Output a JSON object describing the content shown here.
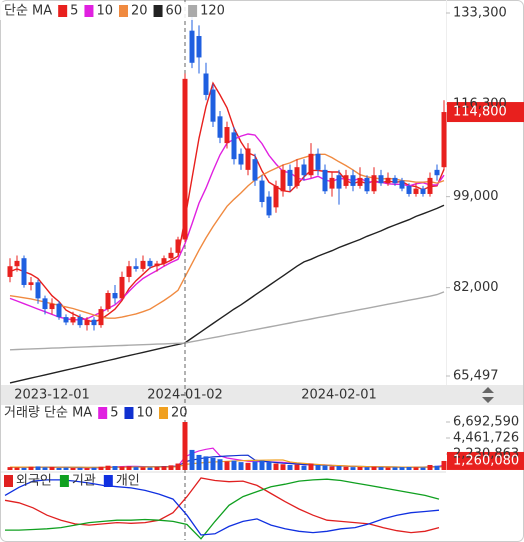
{
  "chart_data": [
    {
      "type": "candlestick",
      "legend_title": "단순 MA",
      "categories": [
        null,
        null,
        null,
        null,
        null,
        null,
        "2023-12-01",
        null,
        null,
        null,
        null,
        null,
        null,
        null,
        null,
        null,
        null,
        null,
        null,
        null,
        null,
        null,
        null,
        null,
        null,
        "2024-01-02",
        null,
        null,
        null,
        null,
        null,
        null,
        null,
        null,
        null,
        null,
        null,
        null,
        null,
        null,
        null,
        null,
        null,
        null,
        null,
        null,
        null,
        "2024-02-01",
        null,
        null,
        null,
        null,
        null,
        null,
        null,
        null,
        null,
        null,
        null,
        null,
        null,
        null,
        null
      ],
      "open": [
        84000,
        86000,
        87500,
        82500,
        83000,
        80000,
        78000,
        79000,
        76500,
        75500,
        76500,
        75000,
        76000,
        75000,
        78000,
        81000,
        80000,
        84000,
        86000,
        85500,
        87000,
        86000,
        86500,
        87500,
        88500,
        91000,
        130000,
        129000,
        122000,
        119000,
        114000,
        109000,
        111000,
        107000,
        104000,
        106000,
        102000,
        99000,
        97000,
        100000,
        104000,
        101000,
        105000,
        103000,
        107000,
        104000,
        100500,
        103000,
        101000,
        103000,
        101000,
        102500,
        100000,
        103000,
        101500,
        102500,
        102000,
        101000,
        99500,
        100500,
        99500,
        104000,
        104500
      ],
      "high": [
        87500,
        88000,
        88000,
        84000,
        83500,
        80500,
        80000,
        79500,
        77000,
        77500,
        77000,
        76500,
        76500,
        78500,
        81500,
        82500,
        85000,
        87000,
        87500,
        88000,
        87500,
        87000,
        88000,
        89500,
        91500,
        122000,
        133300,
        131000,
        124000,
        120000,
        115000,
        113000,
        112000,
        108000,
        109000,
        107000,
        103000,
        100000,
        102000,
        105000,
        105000,
        106000,
        106000,
        109000,
        108000,
        105000,
        103500,
        104000,
        104000,
        104000,
        104500,
        103000,
        104500,
        104000,
        103500,
        103000,
        102500,
        101500,
        101500,
        101000,
        103500,
        105000,
        117000
      ],
      "low": [
        83000,
        85000,
        82000,
        81500,
        79000,
        77000,
        77000,
        76000,
        75000,
        75000,
        74500,
        74000,
        74000,
        74500,
        77500,
        79000,
        79500,
        83000,
        85000,
        85000,
        85500,
        85000,
        86000,
        87000,
        88000,
        90500,
        123000,
        122000,
        117000,
        112000,
        109000,
        108000,
        105000,
        104000,
        103000,
        101000,
        97000,
        95000,
        96000,
        99000,
        100000,
        100500,
        102000,
        102500,
        103000,
        99500,
        99000,
        97500,
        100500,
        100000,
        100500,
        99500,
        99500,
        101000,
        101000,
        101000,
        100000,
        99000,
        99000,
        99000,
        99000,
        102000,
        104000
      ],
      "close": [
        86000,
        87000,
        82500,
        83000,
        80000,
        78000,
        79000,
        76500,
        75500,
        76500,
        75000,
        76000,
        75000,
        78000,
        81000,
        80000,
        84000,
        86000,
        85500,
        87000,
        86000,
        86500,
        87500,
        88500,
        91000,
        121000,
        124000,
        125000,
        118000,
        113000,
        110000,
        112000,
        106000,
        105000,
        108000,
        102000,
        98000,
        95500,
        101000,
        104000,
        101000,
        104500,
        103000,
        107000,
        104000,
        100000,
        102500,
        100500,
        103000,
        101000,
        102500,
        100000,
        103000,
        101500,
        102500,
        101500,
        100500,
        99500,
        100500,
        99500,
        102500,
        103000,
        114800
      ],
      "up_color": "#e8201e",
      "down_color": "#1f5fe0",
      "ylim": [
        65497,
        133300
      ],
      "yticks": [
        {
          "value": 133300,
          "label": "133,300"
        },
        {
          "value": 116300,
          "label": "116,300"
        },
        {
          "value": 99000,
          "label": "99,000"
        },
        {
          "value": 82000,
          "label": "82,000"
        },
        {
          "value": 65497,
          "label": "65,497"
        }
      ],
      "current_label": {
        "value": 114800,
        "label": "114,800"
      },
      "series": [
        {
          "name": "5",
          "color": "#e8201e",
          "values": [
            85000,
            85500,
            85000,
            84500,
            83700,
            82100,
            80500,
            79400,
            77800,
            77100,
            76500,
            75900,
            75600,
            76100,
            77000,
            78000,
            79600,
            81800,
            83300,
            84500,
            85700,
            86200,
            86500,
            87100,
            87900,
            94900,
            102400,
            109900,
            115800,
            120200,
            118000,
            115600,
            111800,
            109200,
            107200,
            106600,
            103800,
            101700,
            100900,
            100100,
            99900,
            101200,
            102700,
            103900,
            103900,
            103700,
            103600,
            103600,
            102000,
            101400,
            101900,
            101400,
            102000,
            101600,
            101900,
            101700,
            101800,
            101100,
            100900,
            100300,
            100900,
            101000,
            104100
          ]
        },
        {
          "name": "10",
          "color": "#e020e0",
          "values": [
            80000,
            79500,
            79000,
            78500,
            78000,
            77500,
            77000,
            76500,
            76200,
            76000,
            76000,
            76200,
            76800,
            77400,
            78100,
            78800,
            79900,
            81300,
            82600,
            83700,
            84500,
            85200,
            86000,
            86700,
            87300,
            90200,
            93900,
            97800,
            100600,
            103800,
            106800,
            109000,
            109700,
            110300,
            110700,
            110500,
            108900,
            106700,
            105100,
            103700,
            103500,
            102500,
            102100,
            102400,
            102800,
            102100,
            101800,
            102400,
            102300,
            102000,
            102400,
            101800,
            101700,
            101700,
            101400,
            101300,
            101300,
            101000,
            101400,
            101600,
            101200,
            101200,
            103000
          ]
        },
        {
          "name": "20",
          "color": "#f08a40",
          "values": [
            80500,
            80300,
            80100,
            79900,
            79600,
            79300,
            79000,
            78700,
            78400,
            78100,
            77700,
            77300,
            76900,
            76500,
            76300,
            76300,
            76500,
            76800,
            77100,
            77500,
            78000,
            78800,
            79600,
            80500,
            81500,
            84000,
            86500,
            89000,
            91300,
            93400,
            95300,
            97200,
            98500,
            99700,
            101000,
            102100,
            103000,
            103700,
            104300,
            104900,
            105300,
            105900,
            106300,
            106700,
            106900,
            106900,
            106300,
            105500,
            104800,
            104000,
            103100,
            102700,
            102500,
            102300,
            102400,
            102300,
            102000,
            101900,
            101700,
            101700,
            101800,
            101500,
            102000
          ]
        },
        {
          "name": "60",
          "color": "#222222",
          "values": [
            64200,
            64500,
            64800,
            65100,
            65400,
            65700,
            66000,
            66300,
            66600,
            66900,
            67200,
            67500,
            67800,
            68100,
            68400,
            68700,
            69000,
            69300,
            69600,
            69900,
            70200,
            70500,
            70800,
            71100,
            71400,
            71700,
            72600,
            73500,
            74400,
            75300,
            76200,
            77100,
            78000,
            78800,
            79700,
            80600,
            81500,
            82400,
            83300,
            84200,
            85100,
            86000,
            86800,
            87300,
            87900,
            88400,
            88900,
            89500,
            90000,
            90500,
            91000,
            91600,
            92100,
            92600,
            93200,
            93700,
            94200,
            94700,
            95300,
            95800,
            96300,
            96800,
            97400
          ]
        },
        {
          "name": "120",
          "color": "#aaaaaa",
          "values": [
            70400,
            70450,
            70500,
            70550,
            70600,
            70650,
            70700,
            70750,
            70800,
            70850,
            70900,
            70950,
            71000,
            71050,
            71100,
            71150,
            71200,
            71250,
            71300,
            71350,
            71400,
            71450,
            71500,
            71550,
            71600,
            71650,
            71900,
            72150,
            72400,
            72650,
            72900,
            73150,
            73400,
            73650,
            73900,
            74150,
            74400,
            74650,
            74900,
            75150,
            75400,
            75650,
            75900,
            76150,
            76400,
            76650,
            76900,
            77150,
            77400,
            77650,
            77900,
            78150,
            78400,
            78650,
            78900,
            79150,
            79400,
            79650,
            79900,
            80150,
            80400,
            80700,
            81200
          ]
        }
      ]
    },
    {
      "type": "bar",
      "legend_title": "거래량 단순 MA",
      "values": [
        400000,
        350000,
        300000,
        450000,
        500000,
        380000,
        420000,
        300000,
        350000,
        280000,
        310000,
        260000,
        330000,
        450000,
        600000,
        550000,
        480000,
        520000,
        400000,
        380000,
        350000,
        420000,
        500000,
        650000,
        900000,
        6692590,
        2800000,
        2100000,
        1900000,
        1700000,
        1500000,
        1200000,
        1300000,
        1100000,
        1000000,
        1200000,
        1300000,
        1100000,
        900000,
        800000,
        700000,
        750000,
        600000,
        900000,
        700000,
        650000,
        500000,
        550000,
        450000,
        400000,
        420000,
        380000,
        450000,
        400000,
        350000,
        380000,
        400000,
        420000,
        380000,
        360000,
        700000,
        600000,
        1260080
      ],
      "ylim": [
        0,
        6692590
      ],
      "yticks": [
        {
          "value": 6692590,
          "label": "6,692,590"
        },
        {
          "value": 4461726,
          "label": "4,461,726"
        },
        {
          "value": 2230863,
          "label": "2,230,863"
        }
      ],
      "current_label": {
        "value": 1260080,
        "label": "1,260,080"
      },
      "series": [
        {
          "name": "5",
          "color": "#e020e0",
          "values": [
            400000,
            390000,
            380000,
            400000,
            410000,
            400000,
            390000,
            370000,
            390000,
            340000,
            320000,
            310000,
            300000,
            320000,
            390000,
            440000,
            480000,
            520000,
            510000,
            470000,
            450000,
            430000,
            410000,
            460000,
            560000,
            1810000,
            2310000,
            2670000,
            2880000,
            3040000,
            1980000,
            1680000,
            1520000,
            1360000,
            1220000,
            1160000,
            1180000,
            1140000,
            1100000,
            1060000,
            960000,
            850000,
            750000,
            730000,
            730000,
            720000,
            640000,
            600000,
            560000,
            510000,
            460000,
            440000,
            420000,
            410000,
            400000,
            390000,
            390000,
            390000,
            390000,
            380000,
            450000,
            490000,
            660000
          ]
        },
        {
          "name": "10",
          "color": "#1030d0",
          "values": [
            410000,
            400000,
            400000,
            395000,
            395000,
            395000,
            390000,
            385000,
            380000,
            370000,
            360000,
            355000,
            350000,
            355000,
            360000,
            390000,
            410000,
            430000,
            440000,
            450000,
            450000,
            460000,
            470000,
            490000,
            530000,
            1140000,
            1380000,
            1560000,
            1720000,
            1840000,
            1880000,
            1950000,
            2000000,
            2050000,
            2060000,
            1380000,
            1240000,
            1140000,
            1040000,
            950000,
            900000,
            840000,
            770000,
            750000,
            700000,
            650000,
            620000,
            570000,
            540000,
            510000,
            490000,
            470000,
            450000,
            440000,
            430000,
            420000,
            410000,
            410000,
            400000,
            400000,
            430000,
            450000,
            530000
          ]
        },
        {
          "name": "20",
          "color": "#f0a020",
          "values": [
            410000,
            405000,
            400000,
            400000,
            398000,
            396000,
            394000,
            392000,
            390000,
            388000,
            385000,
            380000,
            378000,
            376000,
            378000,
            385000,
            392000,
            400000,
            405000,
            410000,
            412000,
            415000,
            420000,
            425000,
            440000,
            760000,
            880000,
            970000,
            1050000,
            1110000,
            1160000,
            1210000,
            1250000,
            1290000,
            1320000,
            1340000,
            1360000,
            1380000,
            1390000,
            1400000,
            1110000,
            1010000,
            920000,
            840000,
            770000,
            700000,
            660000,
            610000,
            570000,
            530000,
            500000,
            480000,
            460000,
            445000,
            430000,
            420000,
            410000,
            400000,
            395000,
            390000,
            400000,
            410000,
            440000
          ]
        }
      ]
    },
    {
      "type": "line",
      "ylim": [
        0,
        100
      ],
      "series": [
        {
          "name": "외국인",
          "color": "#e02020",
          "values": [
            64,
            60,
            52,
            40,
            32,
            26,
            24,
            26,
            28,
            27,
            28,
            32,
            44,
            70,
            100,
            96,
            94,
            95,
            88,
            75,
            62,
            50,
            40,
            32,
            30,
            28,
            26,
            20,
            15,
            12,
            14,
            20
          ]
        },
        {
          "name": "기관",
          "color": "#10a020",
          "values": [
            16,
            16,
            17,
            18,
            20,
            24,
            28,
            30,
            32,
            32,
            33,
            32,
            30,
            25,
            2,
            30,
            56,
            70,
            78,
            86,
            90,
            95,
            97,
            98,
            96,
            92,
            88,
            84,
            80,
            76,
            72,
            66
          ]
        },
        {
          "name": "개인",
          "color": "#1030e0",
          "values": [
            72,
            85,
            95,
            97,
            97,
            95,
            92,
            88,
            86,
            84,
            80,
            74,
            66,
            40,
            8,
            10,
            22,
            30,
            34,
            24,
            18,
            14,
            12,
            14,
            18,
            20,
            26,
            34,
            40,
            44,
            46,
            48
          ]
        }
      ]
    }
  ]
}
